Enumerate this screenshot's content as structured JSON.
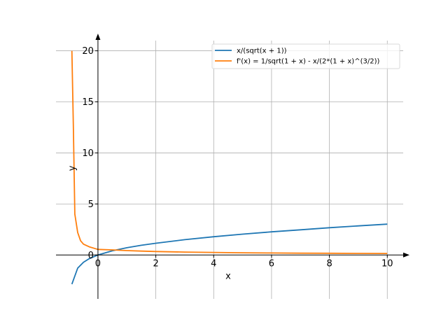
{
  "chart_data": {
    "type": "line",
    "title": "",
    "xlabel": "x",
    "ylabel": "y",
    "xlim": [
      -1.45,
      10.55
    ],
    "ylim": [
      -4.3,
      21.0
    ],
    "x_ticks": [
      0,
      2,
      4,
      6,
      8,
      10
    ],
    "y_ticks": [
      0,
      5,
      10,
      15,
      20
    ],
    "x_tick_labels": [
      "0",
      "2",
      "4",
      "6",
      "8",
      "10"
    ],
    "y_tick_labels": [
      "0",
      "5",
      "10",
      "15",
      "20"
    ],
    "grid": true,
    "legend_position": "top-right",
    "series": [
      {
        "name": "x/(sqrt(x + 1))",
        "color": "#1f77b4",
        "x": [
          -0.9,
          -0.7,
          -0.5,
          -0.3,
          0,
          0.5,
          1,
          1.5,
          2,
          3,
          4,
          5,
          6,
          7,
          8,
          9,
          10
        ],
        "y": [
          -2.85,
          -1.28,
          -0.71,
          -0.36,
          0,
          0.41,
          0.71,
          0.95,
          1.15,
          1.5,
          1.79,
          2.04,
          2.27,
          2.47,
          2.67,
          2.85,
          3.02
        ]
      },
      {
        "name": "f'(x) = 1/sqrt(1 + x) - x/(2*(1 + x)^(3/2))",
        "color": "#ff7f0e",
        "x": [
          -0.9,
          -0.85,
          -0.8,
          -0.7,
          -0.6,
          -0.5,
          -0.3,
          0,
          0.5,
          1,
          1.5,
          2,
          3,
          4,
          5,
          6,
          7,
          8,
          9,
          10
        ],
        "y": [
          20.0,
          12.6,
          4.0,
          2.2,
          1.4,
          1.06,
          0.8,
          0.55,
          0.5,
          0.43,
          0.38,
          0.34,
          0.29,
          0.25,
          0.22,
          0.2,
          0.18,
          0.17,
          0.16,
          0.15
        ]
      }
    ]
  }
}
